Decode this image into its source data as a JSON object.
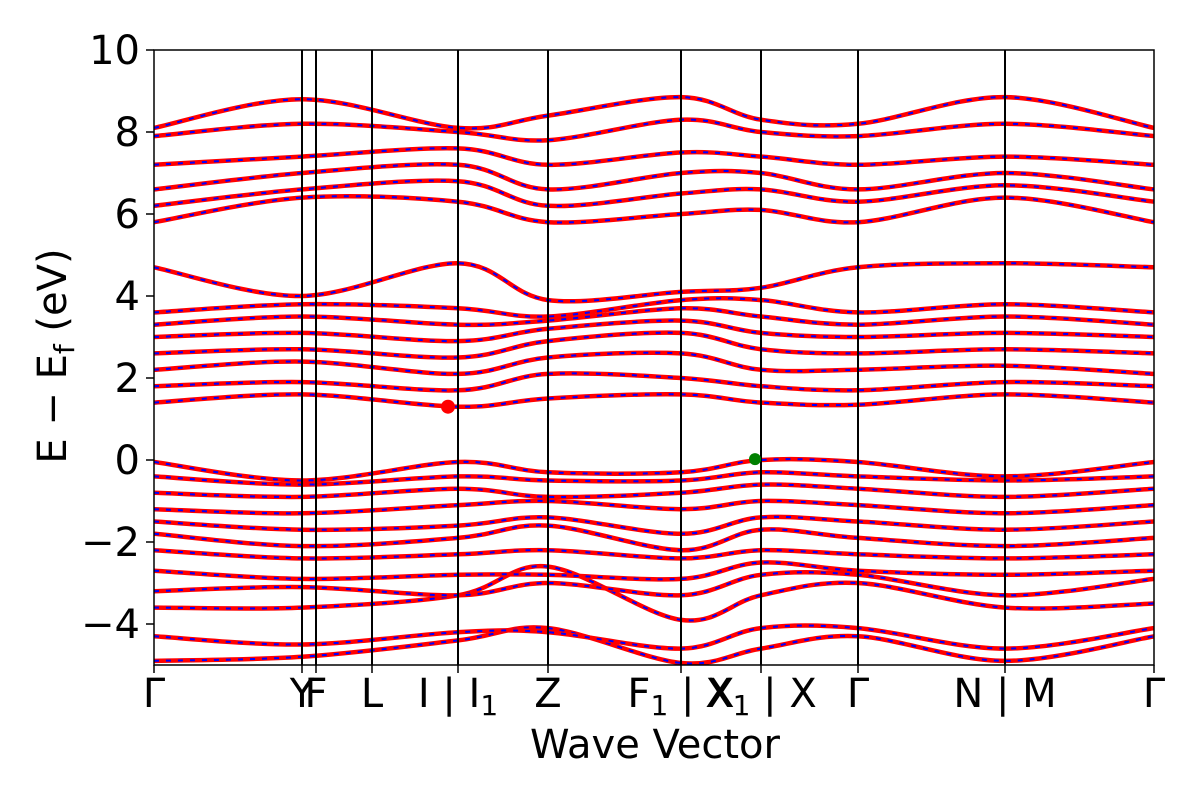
{
  "chart_data": {
    "type": "line",
    "title": "",
    "xlabel": "Wave Vector",
    "ylabel": "E − E",
    "ylabel_subscript": "f",
    "ylabel_unit": " (eV)",
    "ylim": [
      -5,
      10
    ],
    "xlim": [
      0,
      1
    ],
    "yticks": [
      -4,
      -2,
      0,
      2,
      4,
      6,
      8,
      10
    ],
    "ytick_labels": [
      "−4",
      "−2",
      "0",
      "2",
      "4",
      "6",
      "8",
      "10"
    ],
    "xticks": [
      {
        "x": 0.0,
        "label": "Γ",
        "sub": ""
      },
      {
        "x": 0.148,
        "label": "Y",
        "sub": ""
      },
      {
        "x": 0.162,
        "label": "F",
        "sub": ""
      },
      {
        "x": 0.218,
        "label": "L",
        "sub": ""
      },
      {
        "x": 0.304,
        "label": "I | I",
        "sub": "1"
      },
      {
        "x": 0.394,
        "label": "Z",
        "sub": ""
      },
      {
        "x": 0.527,
        "label": "F",
        "sub": "1",
        "tail": " | X"
      },
      {
        "x": 0.607,
        "label": "X",
        "sub": "1",
        "tail": " | X"
      },
      {
        "x": 0.704,
        "label": "Γ",
        "sub": ""
      },
      {
        "x": 0.851,
        "label": "N | M",
        "sub": ""
      },
      {
        "x": 1.0,
        "label": "Γ",
        "sub": ""
      }
    ],
    "grid": false,
    "colors": {
      "primary": "#ff0000",
      "secondary": "#0000ff",
      "cbm": "#ff0000",
      "vbm": "#008000"
    },
    "cbm_point": {
      "x": 0.294,
      "y": 1.3
    },
    "vbm_point": {
      "x": 0.601,
      "y": 0.02
    },
    "bands": [
      {
        "name": "",
        "x": [
          0,
          0.148,
          0.304,
          0.394,
          0.527,
          0.607,
          0.704,
          0.851,
          1.0
        ],
        "y": [
          -4.9,
          -4.8,
          -4.4,
          -4.1,
          -4.95,
          -4.6,
          -4.3,
          -4.9,
          -4.3
        ]
      },
      {
        "name": "",
        "x": [
          0,
          0.148,
          0.304,
          0.394,
          0.527,
          0.607,
          0.704,
          0.851,
          1.0
        ],
        "y": [
          -4.3,
          -4.5,
          -4.2,
          -4.2,
          -4.6,
          -4.1,
          -4.1,
          -4.6,
          -4.1
        ]
      },
      {
        "name": "",
        "x": [
          0,
          0.148,
          0.304,
          0.394,
          0.527,
          0.607,
          0.704,
          0.851,
          1.0
        ],
        "y": [
          -3.6,
          -3.6,
          -3.3,
          -2.6,
          -3.9,
          -3.3,
          -3.0,
          -3.6,
          -3.5
        ]
      },
      {
        "name": "",
        "x": [
          0,
          0.148,
          0.304,
          0.394,
          0.527,
          0.607,
          0.704,
          0.851,
          1.0
        ],
        "y": [
          -3.2,
          -3.1,
          -3.3,
          -3.0,
          -3.3,
          -2.8,
          -2.8,
          -3.3,
          -2.9
        ]
      },
      {
        "name": "",
        "x": [
          0,
          0.148,
          0.304,
          0.394,
          0.527,
          0.607,
          0.704,
          0.851,
          1.0
        ],
        "y": [
          -2.7,
          -2.9,
          -2.8,
          -2.8,
          -2.9,
          -2.5,
          -2.7,
          -2.8,
          -2.7
        ]
      },
      {
        "name": "",
        "x": [
          0,
          0.148,
          0.304,
          0.394,
          0.527,
          0.607,
          0.704,
          0.851,
          1.0
        ],
        "y": [
          -2.2,
          -2.4,
          -2.3,
          -2.2,
          -2.4,
          -2.2,
          -2.3,
          -2.4,
          -2.3
        ]
      },
      {
        "name": "",
        "x": [
          0,
          0.148,
          0.304,
          0.394,
          0.527,
          0.607,
          0.704,
          0.851,
          1.0
        ],
        "y": [
          -1.8,
          -2.1,
          -1.9,
          -1.6,
          -2.2,
          -1.7,
          -1.9,
          -2.1,
          -1.9
        ]
      },
      {
        "name": "",
        "x": [
          0,
          0.148,
          0.304,
          0.394,
          0.527,
          0.607,
          0.704,
          0.851,
          1.0
        ],
        "y": [
          -1.5,
          -1.7,
          -1.6,
          -1.4,
          -1.8,
          -1.4,
          -1.5,
          -1.7,
          -1.5
        ]
      },
      {
        "name": "",
        "x": [
          0,
          0.148,
          0.304,
          0.394,
          0.527,
          0.607,
          0.704,
          0.851,
          1.0
        ],
        "y": [
          -1.2,
          -1.3,
          -1.1,
          -1.0,
          -1.2,
          -1.0,
          -1.1,
          -1.3,
          -1.1
        ]
      },
      {
        "name": "",
        "x": [
          0,
          0.148,
          0.304,
          0.394,
          0.527,
          0.607,
          0.704,
          0.851,
          1.0
        ],
        "y": [
          -0.8,
          -0.9,
          -0.7,
          -0.9,
          -0.8,
          -0.6,
          -0.7,
          -0.9,
          -0.7
        ]
      },
      {
        "name": "",
        "x": [
          0,
          0.148,
          0.304,
          0.394,
          0.527,
          0.607,
          0.704,
          0.851,
          1.0
        ],
        "y": [
          -0.4,
          -0.6,
          -0.4,
          -0.5,
          -0.5,
          -0.3,
          -0.4,
          -0.5,
          -0.4
        ]
      },
      {
        "name": "",
        "x": [
          0,
          0.148,
          0.304,
          0.394,
          0.527,
          0.607,
          0.704,
          0.851,
          1.0
        ],
        "y": [
          -0.05,
          -0.5,
          -0.05,
          -0.3,
          -0.3,
          0.0,
          -0.05,
          -0.4,
          -0.05
        ]
      },
      {
        "name": "",
        "x": [
          0,
          0.148,
          0.304,
          0.394,
          0.527,
          0.607,
          0.704,
          0.851,
          1.0
        ],
        "y": [
          1.4,
          1.6,
          1.3,
          1.5,
          1.6,
          1.4,
          1.35,
          1.6,
          1.4
        ]
      },
      {
        "name": "",
        "x": [
          0,
          0.148,
          0.304,
          0.394,
          0.527,
          0.607,
          0.704,
          0.851,
          1.0
        ],
        "y": [
          1.8,
          1.9,
          1.7,
          2.1,
          2.0,
          1.8,
          1.7,
          1.9,
          1.8
        ]
      },
      {
        "name": "",
        "x": [
          0,
          0.148,
          0.304,
          0.394,
          0.527,
          0.607,
          0.704,
          0.851,
          1.0
        ],
        "y": [
          2.2,
          2.4,
          2.1,
          2.5,
          2.6,
          2.2,
          2.2,
          2.3,
          2.1
        ]
      },
      {
        "name": "",
        "x": [
          0,
          0.148,
          0.304,
          0.394,
          0.527,
          0.607,
          0.704,
          0.851,
          1.0
        ],
        "y": [
          2.6,
          2.7,
          2.5,
          2.9,
          3.1,
          2.7,
          2.6,
          2.7,
          2.6
        ]
      },
      {
        "name": "",
        "x": [
          0,
          0.148,
          0.304,
          0.394,
          0.527,
          0.607,
          0.704,
          0.851,
          1.0
        ],
        "y": [
          3.0,
          3.1,
          2.9,
          3.2,
          3.4,
          3.1,
          3.0,
          3.1,
          3.0
        ]
      },
      {
        "name": "",
        "x": [
          0,
          0.148,
          0.304,
          0.394,
          0.527,
          0.607,
          0.704,
          0.851,
          1.0
        ],
        "y": [
          3.3,
          3.5,
          3.3,
          3.4,
          3.7,
          3.5,
          3.3,
          3.5,
          3.3
        ]
      },
      {
        "name": "",
        "x": [
          0,
          0.148,
          0.304,
          0.394,
          0.527,
          0.607,
          0.704,
          0.851,
          1.0
        ],
        "y": [
          3.6,
          3.8,
          3.7,
          3.5,
          3.9,
          3.9,
          3.6,
          3.8,
          3.6
        ]
      },
      {
        "name": "",
        "x": [
          0,
          0.148,
          0.304,
          0.394,
          0.527,
          0.607,
          0.704,
          0.851,
          1.0
        ],
        "y": [
          4.7,
          4.0,
          4.8,
          3.9,
          4.1,
          4.2,
          4.7,
          4.8,
          4.7
        ]
      },
      {
        "name": "",
        "x": [
          0,
          0.148,
          0.304,
          0.394,
          0.527,
          0.607,
          0.704,
          0.851,
          1.0
        ],
        "y": [
          5.8,
          6.4,
          6.3,
          5.8,
          6.0,
          6.1,
          5.8,
          6.4,
          5.8
        ]
      },
      {
        "name": "",
        "x": [
          0,
          0.148,
          0.304,
          0.394,
          0.527,
          0.607,
          0.704,
          0.851,
          1.0
        ],
        "y": [
          6.2,
          6.6,
          6.8,
          6.2,
          6.5,
          6.6,
          6.3,
          6.7,
          6.3
        ]
      },
      {
        "name": "",
        "x": [
          0,
          0.148,
          0.304,
          0.394,
          0.527,
          0.607,
          0.704,
          0.851,
          1.0
        ],
        "y": [
          6.6,
          7.0,
          7.2,
          6.6,
          7.0,
          7.0,
          6.6,
          7.0,
          6.6
        ]
      },
      {
        "name": "",
        "x": [
          0,
          0.148,
          0.304,
          0.394,
          0.527,
          0.607,
          0.704,
          0.851,
          1.0
        ],
        "y": [
          7.2,
          7.4,
          7.6,
          7.2,
          7.5,
          7.4,
          7.2,
          7.4,
          7.2
        ]
      },
      {
        "name": "",
        "x": [
          0,
          0.148,
          0.304,
          0.394,
          0.527,
          0.607,
          0.704,
          0.851,
          1.0
        ],
        "y": [
          7.9,
          8.2,
          8.0,
          7.8,
          8.3,
          8.0,
          7.9,
          8.2,
          7.9
        ]
      },
      {
        "name": "",
        "x": [
          0,
          0.148,
          0.304,
          0.394,
          0.527,
          0.607,
          0.704,
          0.851,
          1.0
        ],
        "y": [
          8.1,
          8.8,
          8.1,
          8.4,
          8.85,
          8.3,
          8.2,
          8.85,
          8.1
        ]
      }
    ]
  }
}
